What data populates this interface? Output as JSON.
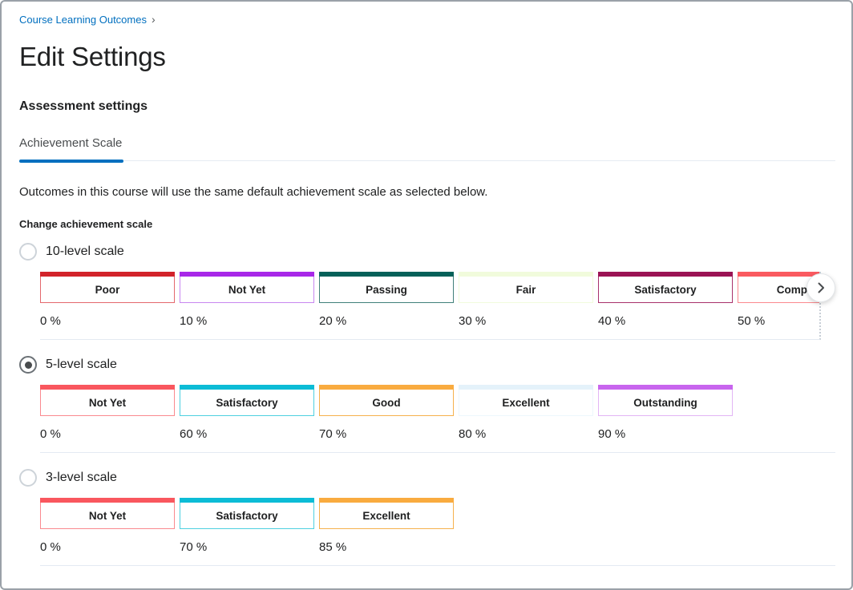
{
  "breadcrumb": {
    "label": "Course Learning Outcomes",
    "separator": "›"
  },
  "title": "Edit Settings",
  "section_heading": "Assessment settings",
  "tab": {
    "label": "Achievement Scale"
  },
  "description": "Outcomes in this course will use the same default achievement scale as selected below.",
  "field_label": "Change achievement scale",
  "colors": {
    "link_blue": "#006fbf",
    "tab_underline": "#006fbf",
    "text_dark": "#202122",
    "divider": "#e4eaf2"
  },
  "icons": {
    "breadcrumb_separator": "chevron-right",
    "scroll_next": "chevron-right"
  },
  "scales": [
    {
      "id": "10-level-scale",
      "label": "10-level scale",
      "selected": false,
      "scrollable": true,
      "levels": [
        {
          "name": "Poor",
          "percent": "0 %",
          "bar": "#d2232a",
          "border": "#e4686d"
        },
        {
          "name": "Not Yet",
          "percent": "10 %",
          "bar": "#a827e8",
          "border": "#c887f0"
        },
        {
          "name": "Passing",
          "percent": "20 %",
          "bar": "#056159",
          "border": "#41807a"
        },
        {
          "name": "Fair",
          "percent": "30 %",
          "bar": "#f1fbdc",
          "border": "#f1fbdc"
        },
        {
          "name": "Satisfactory",
          "percent": "40 %",
          "bar": "#9b1354",
          "border": "#a8316b"
        },
        {
          "name": "Competent",
          "percent": "50 %",
          "bar": "#fa5a60",
          "border": "#fb8a8e"
        }
      ]
    },
    {
      "id": "5-level-scale",
      "label": "5-level scale",
      "selected": true,
      "scrollable": false,
      "levels": [
        {
          "name": "Not Yet",
          "percent": "0 %",
          "bar": "#f9575e",
          "border": "#fa8a8f"
        },
        {
          "name": "Satisfactory",
          "percent": "60 %",
          "bar": "#0cbcd6",
          "border": "#4fd0e0"
        },
        {
          "name": "Good",
          "percent": "70 %",
          "bar": "#f9ab3f",
          "border": "#f6b14d"
        },
        {
          "name": "Excellent",
          "percent": "80 %",
          "bar": "#e4f2fa",
          "border": "#edf7fc"
        },
        {
          "name": "Outstanding",
          "percent": "90 %",
          "bar": "#c865ee",
          "border": "#e2b5f5"
        }
      ]
    },
    {
      "id": "3-level-scale",
      "label": "3-level scale",
      "selected": false,
      "scrollable": false,
      "levels": [
        {
          "name": "Not Yet",
          "percent": "0 %",
          "bar": "#f9575e",
          "border": "#fa8a8f"
        },
        {
          "name": "Satisfactory",
          "percent": "70 %",
          "bar": "#0cbcd6",
          "border": "#4fd0e0"
        },
        {
          "name": "Excellent",
          "percent": "85 %",
          "bar": "#f9ab3f",
          "border": "#f6b14d"
        }
      ]
    }
  ]
}
